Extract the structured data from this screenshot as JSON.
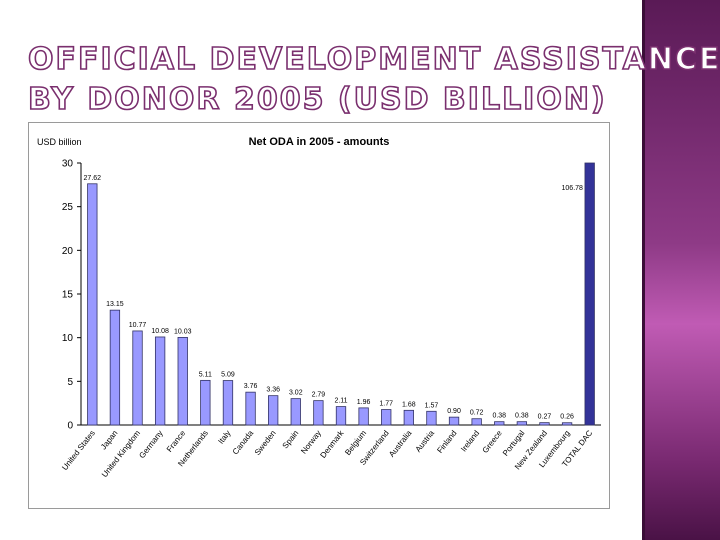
{
  "slide": {
    "title_line1": "OFFICIAL DEVELOPMENT ASSISTANCE",
    "title_line2": "BY DONOR 2005 (USD BILLION)",
    "accent_color": "#7a2f6e",
    "side_panel_color": "#8e3a86"
  },
  "chart_data": {
    "type": "bar",
    "title": "Net ODA in 2005 - amounts",
    "ylabel": "USD billion",
    "xlabel": "",
    "ylim": [
      0,
      30
    ],
    "yticks": [
      "0",
      "5",
      "10",
      "15",
      "20",
      "25",
      "30"
    ],
    "categories": [
      "United States",
      "Japan",
      "United Kingdom",
      "Germany",
      "France",
      "Netherlands",
      "Italy",
      "Canada",
      "Sweden",
      "Spain",
      "Norway",
      "Denmark",
      "Belgium",
      "Switzerland",
      "Australia",
      "Austria",
      "Finland",
      "Ireland",
      "Greece",
      "Portugal",
      "New Zealand",
      "Luxembourg",
      "TOTAL DAC"
    ],
    "values": [
      27.62,
      13.15,
      10.77,
      10.08,
      10.03,
      5.11,
      5.09,
      3.76,
      3.36,
      3.02,
      2.79,
      2.11,
      1.96,
      1.77,
      1.68,
      1.57,
      0.9,
      0.72,
      0.38,
      0.38,
      0.27,
      0.26,
      106.78
    ],
    "value_labels": [
      "27.62",
      "13.15",
      "10.77",
      "10.08",
      "10.03",
      "5.11",
      "5.09",
      "3.76",
      "3.36",
      "3.02",
      "2.79",
      "2.11",
      "1.96",
      "1.77",
      "1.68",
      "1.57",
      "0.90",
      "0.72",
      "0.38",
      "0.38",
      "0.27",
      "0.26",
      "106.78"
    ],
    "bar_color": "#9999ff",
    "total_bar_color": "#333399",
    "grid": false,
    "legend": "none"
  }
}
